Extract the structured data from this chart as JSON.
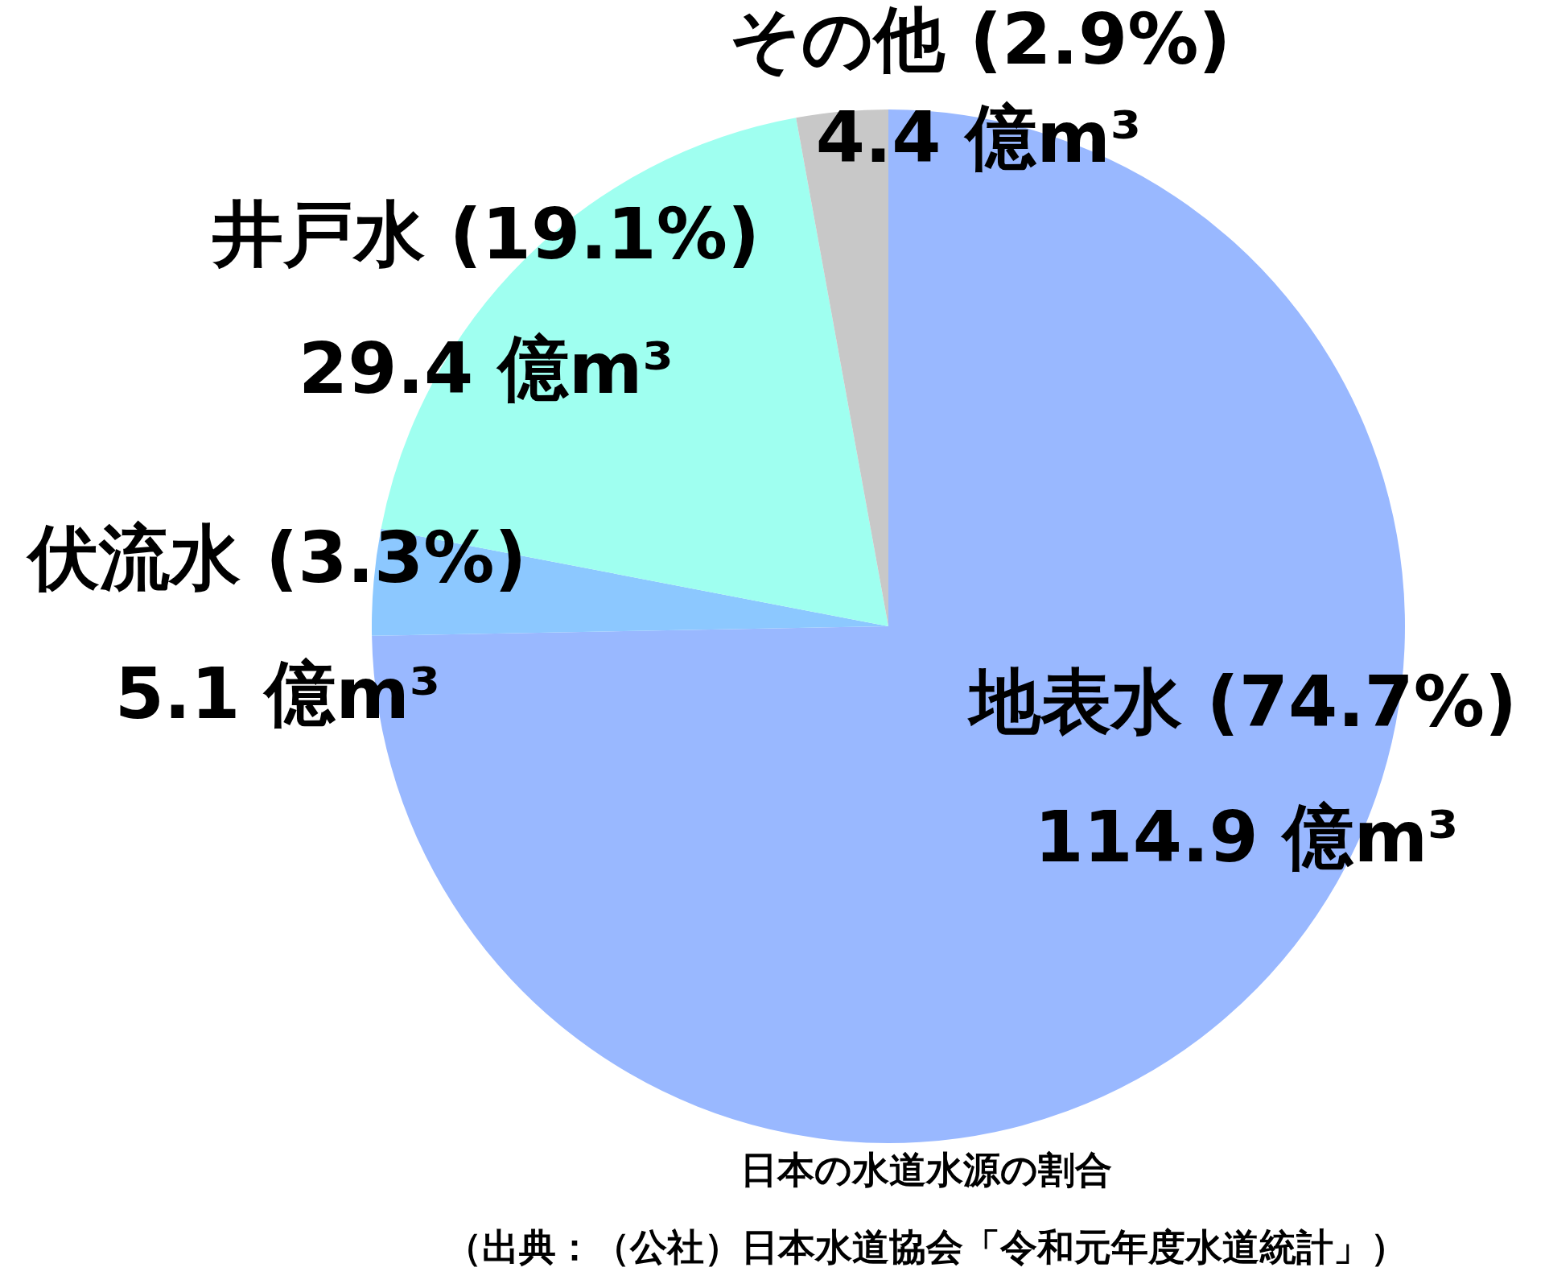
{
  "chart_data": {
    "type": "pie",
    "title": "日本の水道水源の割合",
    "categories": [
      "地表水 (74.7%)",
      "伏流水 (3.3%)",
      "井戸水 (19.1%)",
      "その他 (2.9%)"
    ],
    "values": [
      114.9,
      5.1,
      29.4,
      4.4
    ],
    "value_labels": [
      "114.9 億m³",
      "5.1 億m³",
      "29.4 億m³",
      "4.4 億m³"
    ],
    "colors": [
      "#99b8ff",
      "#8cc8ff",
      "#9ffff0",
      "#c8c8c8"
    ],
    "legend": false,
    "annotations": [
      "（出典：（公社）日本水道協会「令和元年度水道統計」）"
    ]
  }
}
